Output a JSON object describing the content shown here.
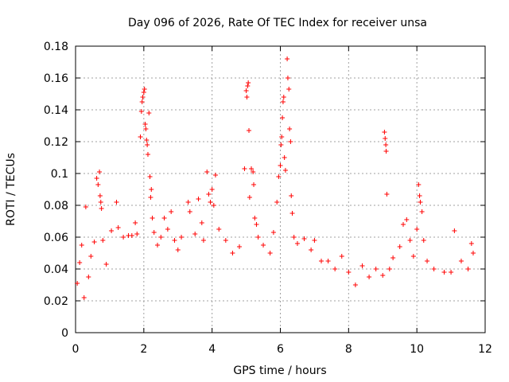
{
  "chart_data": {
    "type": "scatter",
    "title": "Day 096 of 2026, Rate Of TEC Index for receiver unsa",
    "xlabel": "GPS time / hours",
    "ylabel": "ROTI / TECUs",
    "xlim": [
      0,
      12
    ],
    "ylim": [
      0,
      0.18
    ],
    "x_ticks": [
      0,
      2,
      4,
      6,
      8,
      10,
      12
    ],
    "x_tick_labels": [
      "0",
      "2",
      "4",
      "6",
      "8",
      "10",
      "12"
    ],
    "y_ticks": [
      0,
      0.02,
      0.04,
      0.06,
      0.08,
      0.1,
      0.12,
      0.14,
      0.16,
      0.18
    ],
    "y_tick_labels": [
      "0",
      "0.02",
      "0.04",
      "0.06",
      "0.08",
      "0.1",
      "0.12",
      "0.14",
      "0.16",
      "0.18"
    ],
    "grid": true,
    "marker": "+",
    "color": "#ff0000",
    "series": [
      {
        "name": "ROTI",
        "points": [
          [
            0.05,
            0.031
          ],
          [
            0.12,
            0.044
          ],
          [
            0.18,
            0.055
          ],
          [
            0.25,
            0.022
          ],
          [
            0.3,
            0.079
          ],
          [
            0.38,
            0.035
          ],
          [
            0.45,
            0.048
          ],
          [
            0.55,
            0.057
          ],
          [
            0.62,
            0.097
          ],
          [
            0.66,
            0.093
          ],
          [
            0.7,
            0.101
          ],
          [
            0.72,
            0.086
          ],
          [
            0.74,
            0.082
          ],
          [
            0.76,
            0.078
          ],
          [
            0.8,
            0.058
          ],
          [
            0.9,
            0.043
          ],
          [
            1.05,
            0.064
          ],
          [
            1.2,
            0.082
          ],
          [
            1.25,
            0.066
          ],
          [
            1.4,
            0.06
          ],
          [
            1.55,
            0.061
          ],
          [
            1.65,
            0.061
          ],
          [
            1.75,
            0.069
          ],
          [
            1.8,
            0.062
          ],
          [
            1.9,
            0.123
          ],
          [
            1.93,
            0.139
          ],
          [
            1.95,
            0.145
          ],
          [
            1.97,
            0.148
          ],
          [
            2.0,
            0.151
          ],
          [
            2.02,
            0.153
          ],
          [
            2.04,
            0.131
          ],
          [
            2.06,
            0.128
          ],
          [
            2.08,
            0.121
          ],
          [
            2.1,
            0.118
          ],
          [
            2.12,
            0.112
          ],
          [
            2.15,
            0.138
          ],
          [
            2.18,
            0.098
          ],
          [
            2.2,
            0.085
          ],
          [
            2.22,
            0.09
          ],
          [
            2.25,
            0.072
          ],
          [
            2.3,
            0.063
          ],
          [
            2.4,
            0.055
          ],
          [
            2.5,
            0.06
          ],
          [
            2.6,
            0.072
          ],
          [
            2.7,
            0.065
          ],
          [
            2.8,
            0.076
          ],
          [
            2.9,
            0.058
          ],
          [
            3.0,
            0.052
          ],
          [
            3.1,
            0.06
          ],
          [
            3.3,
            0.082
          ],
          [
            3.35,
            0.076
          ],
          [
            3.5,
            0.062
          ],
          [
            3.6,
            0.084
          ],
          [
            3.7,
            0.069
          ],
          [
            3.75,
            0.058
          ],
          [
            3.85,
            0.101
          ],
          [
            3.9,
            0.087
          ],
          [
            3.95,
            0.082
          ],
          [
            4.0,
            0.09
          ],
          [
            4.05,
            0.08
          ],
          [
            4.1,
            0.099
          ],
          [
            4.2,
            0.065
          ],
          [
            4.4,
            0.058
          ],
          [
            4.6,
            0.05
          ],
          [
            4.8,
            0.054
          ],
          [
            4.95,
            0.103
          ],
          [
            5.0,
            0.152
          ],
          [
            5.02,
            0.148
          ],
          [
            5.04,
            0.155
          ],
          [
            5.06,
            0.157
          ],
          [
            5.08,
            0.127
          ],
          [
            5.1,
            0.085
          ],
          [
            5.15,
            0.103
          ],
          [
            5.2,
            0.101
          ],
          [
            5.22,
            0.093
          ],
          [
            5.25,
            0.072
          ],
          [
            5.3,
            0.068
          ],
          [
            5.35,
            0.06
          ],
          [
            5.5,
            0.055
          ],
          [
            5.7,
            0.05
          ],
          [
            5.8,
            0.063
          ],
          [
            5.9,
            0.082
          ],
          [
            5.95,
            0.098
          ],
          [
            6.0,
            0.105
          ],
          [
            6.02,
            0.118
          ],
          [
            6.04,
            0.123
          ],
          [
            6.06,
            0.135
          ],
          [
            6.08,
            0.145
          ],
          [
            6.1,
            0.148
          ],
          [
            6.12,
            0.11
          ],
          [
            6.15,
            0.102
          ],
          [
            6.2,
            0.172
          ],
          [
            6.22,
            0.16
          ],
          [
            6.25,
            0.153
          ],
          [
            6.27,
            0.128
          ],
          [
            6.3,
            0.12
          ],
          [
            6.32,
            0.086
          ],
          [
            6.35,
            0.075
          ],
          [
            6.4,
            0.06
          ],
          [
            6.5,
            0.056
          ],
          [
            6.7,
            0.059
          ],
          [
            6.9,
            0.052
          ],
          [
            7.0,
            0.058
          ],
          [
            7.2,
            0.045
          ],
          [
            7.4,
            0.045
          ],
          [
            7.6,
            0.04
          ],
          [
            7.8,
            0.048
          ],
          [
            8.0,
            0.038
          ],
          [
            8.2,
            0.03
          ],
          [
            8.4,
            0.042
          ],
          [
            8.6,
            0.035
          ],
          [
            8.8,
            0.04
          ],
          [
            9.0,
            0.036
          ],
          [
            9.05,
            0.126
          ],
          [
            9.07,
            0.122
          ],
          [
            9.09,
            0.118
          ],
          [
            9.1,
            0.114
          ],
          [
            9.12,
            0.087
          ],
          [
            9.2,
            0.04
          ],
          [
            9.3,
            0.047
          ],
          [
            9.5,
            0.054
          ],
          [
            9.6,
            0.068
          ],
          [
            9.7,
            0.071
          ],
          [
            9.8,
            0.058
          ],
          [
            9.9,
            0.048
          ],
          [
            10.0,
            0.065
          ],
          [
            10.05,
            0.093
          ],
          [
            10.08,
            0.086
          ],
          [
            10.1,
            0.082
          ],
          [
            10.15,
            0.076
          ],
          [
            10.2,
            0.058
          ],
          [
            10.3,
            0.045
          ],
          [
            10.5,
            0.04
          ],
          [
            10.8,
            0.038
          ],
          [
            11.0,
            0.038
          ],
          [
            11.1,
            0.064
          ],
          [
            11.3,
            0.045
          ],
          [
            11.5,
            0.04
          ],
          [
            11.6,
            0.056
          ],
          [
            11.65,
            0.05
          ]
        ]
      }
    ]
  }
}
